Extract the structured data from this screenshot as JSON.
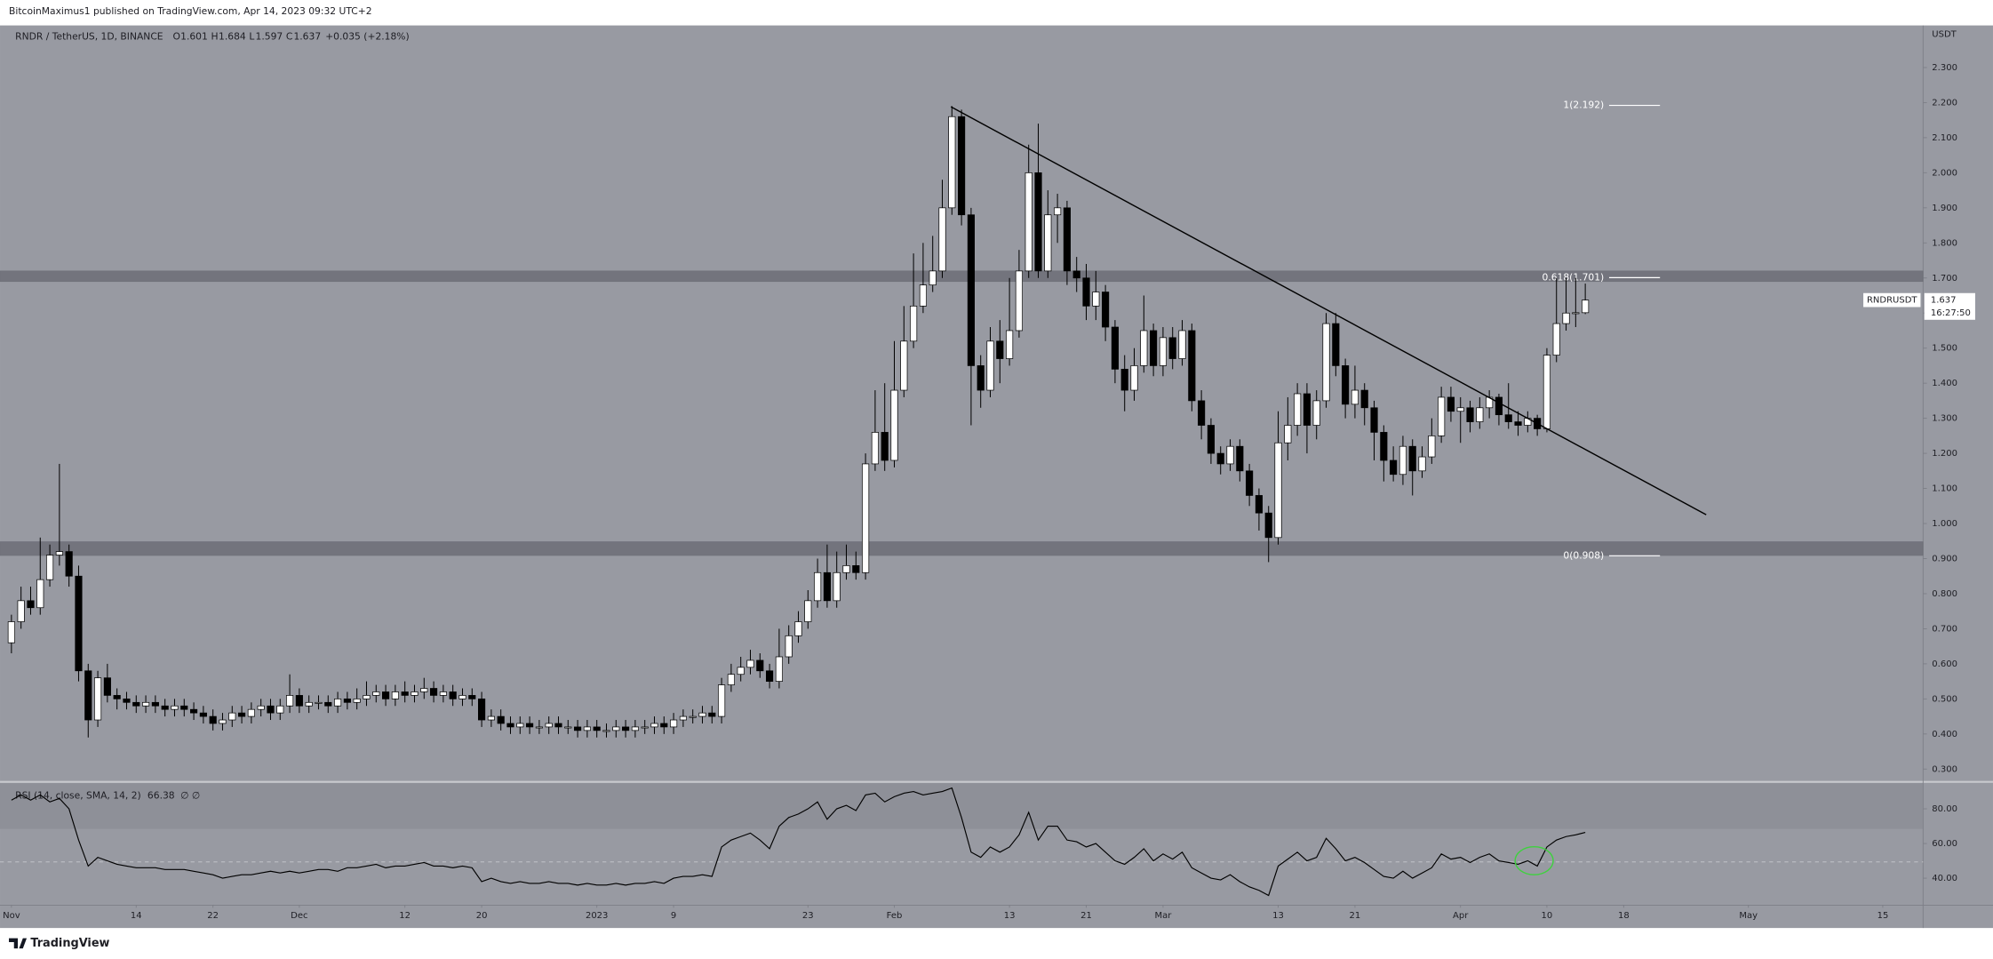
{
  "header": "BitcoinMaximus1 published on TradingView.com, Apr 14, 2023 09:32 UTC+2",
  "footer": "TradingView",
  "chart_data": [
    {
      "type": "candlestick",
      "title": "RNDR / TetherUS, 1D, BINANCE",
      "ohlc_letters": [
        "O",
        "H",
        "L",
        "C"
      ],
      "change": "+0.035 (+2.18%)",
      "currency": "USDT",
      "symbol": "RNDRUSDT",
      "countdown": "16:27:50",
      "up_color": "#ffffff",
      "down_color": "#000000",
      "xlim": [
        -1.19,
        199.2
      ],
      "xticks": [
        {
          "value": 0,
          "label": "Nov"
        },
        {
          "value": 13,
          "label": "14"
        },
        {
          "value": 21,
          "label": "22"
        },
        {
          "value": 30,
          "label": "Dec"
        },
        {
          "value": 41,
          "label": "12"
        },
        {
          "value": 49,
          "label": "20"
        },
        {
          "value": 61,
          "label": "2023"
        },
        {
          "value": 69,
          "label": "9"
        },
        {
          "value": 83,
          "label": "23"
        },
        {
          "value": 92,
          "label": "Feb"
        },
        {
          "value": 104,
          "label": "13"
        },
        {
          "value": 112,
          "label": "21"
        },
        {
          "value": 120,
          "label": "Mar"
        },
        {
          "value": 132,
          "label": "13"
        },
        {
          "value": 140,
          "label": "21"
        },
        {
          "value": 151,
          "label": "Apr"
        },
        {
          "value": 160,
          "label": "10"
        },
        {
          "value": 168,
          "label": "18"
        },
        {
          "value": 181,
          "label": "May"
        },
        {
          "value": 195,
          "label": "15"
        }
      ],
      "ylim": [
        0.267,
        2.42
      ],
      "yticks": [
        {
          "value": 0.3,
          "label": "0.300"
        },
        {
          "value": 0.4,
          "label": "0.400"
        },
        {
          "value": 0.5,
          "label": "0.500"
        },
        {
          "value": 0.6,
          "label": "0.600"
        },
        {
          "value": 0.7,
          "label": "0.700"
        },
        {
          "value": 0.8,
          "label": "0.800"
        },
        {
          "value": 0.9,
          "label": "0.900"
        },
        {
          "value": 1,
          "label": "1.000"
        },
        {
          "value": 1.1,
          "label": "1.100"
        },
        {
          "value": 1.2,
          "label": "1.200"
        },
        {
          "value": 1.3,
          "label": "1.300"
        },
        {
          "value": 1.4,
          "label": "1.400"
        },
        {
          "value": 1.5,
          "label": "1.500"
        },
        {
          "value": 1.6,
          "label": "1.600"
        },
        {
          "value": 1.7,
          "label": "1.700"
        },
        {
          "value": 1.8,
          "label": "1.800"
        },
        {
          "value": 1.9,
          "label": "1.900"
        },
        {
          "value": 2,
          "label": "2.000"
        },
        {
          "value": 2.1,
          "label": "2.100"
        },
        {
          "value": 2.2,
          "label": "2.200"
        },
        {
          "value": 2.3,
          "label": "2.300"
        }
      ],
      "zones": [
        [
          1.69,
          1.72
        ],
        [
          0.909,
          0.948
        ]
      ],
      "levels": [
        {
          "value": 2.192,
          "label": "1(2.192)"
        },
        {
          "value": 1.701,
          "label": "0.618(1.701)"
        },
        {
          "value": 0.908,
          "label": "0(0.908)"
        }
      ],
      "trendline": {
        "x": [
          97.9,
          176.6
        ],
        "y": [
          2.188,
          1.025
        ]
      },
      "open": [
        0.66,
        0.72,
        0.78,
        0.76,
        0.84,
        0.91,
        0.92,
        0.85,
        0.58,
        0.44,
        0.56,
        0.51,
        0.5,
        0.49,
        0.48,
        0.49,
        0.48,
        0.47,
        0.48,
        0.47,
        0.46,
        0.45,
        0.43,
        0.44,
        0.46,
        0.45,
        0.47,
        0.48,
        0.46,
        0.48,
        0.51,
        0.48,
        0.49,
        0.49,
        0.48,
        0.5,
        0.49,
        0.5,
        0.51,
        0.52,
        0.5,
        0.52,
        0.51,
        0.52,
        0.53,
        0.51,
        0.52,
        0.5,
        0.51,
        0.5,
        0.44,
        0.45,
        0.43,
        0.42,
        0.43,
        0.42,
        0.42,
        0.43,
        0.42,
        0.42,
        0.41,
        0.42,
        0.41,
        0.41,
        0.42,
        0.41,
        0.42,
        0.42,
        0.43,
        0.42,
        0.44,
        0.45,
        0.45,
        0.46,
        0.45,
        0.54,
        0.57,
        0.59,
        0.61,
        0.58,
        0.55,
        0.62,
        0.68,
        0.72,
        0.78,
        0.86,
        0.78,
        0.86,
        0.88,
        0.86,
        1.17,
        1.26,
        1.18,
        1.38,
        1.52,
        1.62,
        1.68,
        1.72,
        1.9,
        2.16,
        1.88,
        1.45,
        1.38,
        1.52,
        1.47,
        1.55,
        1.72,
        2.0,
        1.72,
        1.88,
        1.9,
        1.72,
        1.7,
        1.62,
        1.66,
        1.56,
        1.44,
        1.38,
        1.45,
        1.55,
        1.45,
        1.53,
        1.47,
        1.55,
        1.35,
        1.28,
        1.2,
        1.17,
        1.22,
        1.15,
        1.08,
        1.03,
        0.96,
        1.23,
        1.28,
        1.37,
        1.28,
        1.35,
        1.57,
        1.45,
        1.34,
        1.38,
        1.33,
        1.26,
        1.18,
        1.14,
        1.22,
        1.15,
        1.19,
        1.25,
        1.36,
        1.32,
        1.33,
        1.29,
        1.33,
        1.36,
        1.31,
        1.29,
        1.28,
        1.3,
        1.27,
        1.48,
        1.57,
        1.6,
        1.601
      ],
      "high": [
        0.74,
        0.82,
        0.82,
        0.96,
        0.94,
        1.17,
        0.94,
        0.88,
        0.6,
        0.58,
        0.6,
        0.53,
        0.52,
        0.51,
        0.51,
        0.51,
        0.5,
        0.5,
        0.5,
        0.49,
        0.48,
        0.47,
        0.46,
        0.48,
        0.48,
        0.49,
        0.5,
        0.5,
        0.5,
        0.57,
        0.53,
        0.51,
        0.51,
        0.51,
        0.52,
        0.52,
        0.53,
        0.55,
        0.54,
        0.54,
        0.54,
        0.55,
        0.54,
        0.56,
        0.55,
        0.54,
        0.54,
        0.53,
        0.53,
        0.52,
        0.47,
        0.47,
        0.45,
        0.45,
        0.45,
        0.44,
        0.45,
        0.45,
        0.44,
        0.44,
        0.44,
        0.44,
        0.43,
        0.44,
        0.44,
        0.44,
        0.44,
        0.45,
        0.45,
        0.46,
        0.47,
        0.47,
        0.48,
        0.48,
        0.56,
        0.6,
        0.62,
        0.64,
        0.63,
        0.6,
        0.7,
        0.71,
        0.75,
        0.81,
        0.9,
        0.94,
        0.92,
        0.94,
        0.92,
        1.2,
        1.38,
        1.4,
        1.52,
        1.62,
        1.77,
        1.8,
        1.82,
        1.98,
        2.19,
        2.18,
        1.9,
        1.48,
        1.56,
        1.58,
        1.7,
        1.78,
        2.08,
        2.14,
        1.95,
        1.94,
        1.92,
        1.76,
        1.74,
        1.72,
        1.68,
        1.58,
        1.48,
        1.5,
        1.65,
        1.57,
        1.56,
        1.56,
        1.58,
        1.57,
        1.38,
        1.3,
        1.22,
        1.24,
        1.24,
        1.17,
        1.1,
        1.05,
        1.32,
        1.36,
        1.4,
        1.4,
        1.38,
        1.6,
        1.6,
        1.47,
        1.45,
        1.4,
        1.35,
        1.28,
        1.22,
        1.25,
        1.24,
        1.22,
        1.3,
        1.39,
        1.39,
        1.36,
        1.35,
        1.36,
        1.38,
        1.37,
        1.4,
        1.32,
        1.32,
        1.31,
        1.5,
        1.7,
        1.7,
        1.7,
        1.684
      ],
      "low": [
        0.63,
        0.7,
        0.74,
        0.74,
        0.82,
        0.88,
        0.82,
        0.55,
        0.39,
        0.42,
        0.49,
        0.47,
        0.47,
        0.46,
        0.46,
        0.46,
        0.45,
        0.45,
        0.45,
        0.44,
        0.43,
        0.41,
        0.41,
        0.42,
        0.43,
        0.43,
        0.45,
        0.44,
        0.44,
        0.46,
        0.46,
        0.46,
        0.47,
        0.46,
        0.46,
        0.47,
        0.47,
        0.48,
        0.49,
        0.48,
        0.48,
        0.49,
        0.49,
        0.5,
        0.49,
        0.49,
        0.48,
        0.48,
        0.48,
        0.42,
        0.42,
        0.41,
        0.4,
        0.4,
        0.4,
        0.4,
        0.4,
        0.4,
        0.4,
        0.39,
        0.39,
        0.39,
        0.39,
        0.39,
        0.39,
        0.39,
        0.4,
        0.4,
        0.4,
        0.4,
        0.42,
        0.43,
        0.43,
        0.43,
        0.43,
        0.52,
        0.55,
        0.57,
        0.56,
        0.53,
        0.53,
        0.6,
        0.66,
        0.7,
        0.76,
        0.76,
        0.76,
        0.84,
        0.84,
        0.84,
        1.15,
        1.15,
        1.16,
        1.36,
        1.5,
        1.6,
        1.66,
        1.7,
        1.88,
        1.85,
        1.28,
        1.33,
        1.36,
        1.4,
        1.45,
        1.53,
        1.7,
        1.7,
        1.7,
        1.8,
        1.68,
        1.66,
        1.58,
        1.58,
        1.52,
        1.4,
        1.32,
        1.35,
        1.43,
        1.42,
        1.42,
        1.44,
        1.45,
        1.32,
        1.24,
        1.17,
        1.14,
        1.15,
        1.12,
        1.05,
        0.98,
        0.89,
        0.94,
        1.18,
        1.25,
        1.2,
        1.24,
        1.33,
        1.42,
        1.3,
        1.3,
        1.28,
        1.18,
        1.12,
        1.12,
        1.11,
        1.08,
        1.13,
        1.17,
        1.23,
        1.29,
        1.23,
        1.26,
        1.27,
        1.3,
        1.28,
        1.27,
        1.25,
        1.26,
        1.25,
        1.26,
        1.46,
        1.55,
        1.56,
        1.597
      ],
      "close": [
        0.72,
        0.78,
        0.76,
        0.84,
        0.91,
        0.92,
        0.85,
        0.58,
        0.44,
        0.56,
        0.51,
        0.5,
        0.49,
        0.48,
        0.49,
        0.48,
        0.47,
        0.48,
        0.47,
        0.46,
        0.45,
        0.43,
        0.44,
        0.46,
        0.45,
        0.47,
        0.48,
        0.46,
        0.48,
        0.51,
        0.48,
        0.49,
        0.49,
        0.48,
        0.5,
        0.49,
        0.5,
        0.51,
        0.52,
        0.5,
        0.52,
        0.51,
        0.52,
        0.53,
        0.51,
        0.52,
        0.5,
        0.51,
        0.5,
        0.44,
        0.45,
        0.43,
        0.42,
        0.43,
        0.42,
        0.42,
        0.43,
        0.42,
        0.42,
        0.41,
        0.42,
        0.41,
        0.41,
        0.42,
        0.41,
        0.42,
        0.42,
        0.43,
        0.42,
        0.44,
        0.45,
        0.45,
        0.46,
        0.45,
        0.54,
        0.57,
        0.59,
        0.61,
        0.58,
        0.55,
        0.62,
        0.68,
        0.72,
        0.78,
        0.86,
        0.78,
        0.86,
        0.88,
        0.86,
        1.17,
        1.26,
        1.18,
        1.38,
        1.52,
        1.62,
        1.68,
        1.72,
        1.9,
        2.16,
        1.88,
        1.45,
        1.38,
        1.52,
        1.47,
        1.55,
        1.72,
        2.0,
        1.72,
        1.88,
        1.9,
        1.72,
        1.7,
        1.62,
        1.66,
        1.56,
        1.44,
        1.38,
        1.45,
        1.55,
        1.45,
        1.53,
        1.47,
        1.55,
        1.35,
        1.28,
        1.2,
        1.17,
        1.22,
        1.15,
        1.08,
        1.03,
        0.96,
        1.23,
        1.28,
        1.37,
        1.28,
        1.35,
        1.57,
        1.45,
        1.34,
        1.38,
        1.33,
        1.26,
        1.18,
        1.14,
        1.22,
        1.15,
        1.19,
        1.25,
        1.36,
        1.32,
        1.33,
        1.29,
        1.33,
        1.36,
        1.31,
        1.29,
        1.28,
        1.3,
        1.27,
        1.48,
        1.57,
        1.6,
        1.601,
        1.637
      ]
    },
    {
      "type": "line",
      "title": "RSI (14, close, SMA, 14, 2)",
      "na_label": "∅ ∅",
      "color": "#000000",
      "ylim": [
        24.4,
        94.8
      ],
      "yticks": [
        {
          "value": 80,
          "label": "80.00"
        },
        {
          "value": 60,
          "label": "60.00"
        },
        {
          "value": 40,
          "label": "40.00"
        }
      ],
      "values": [
        85,
        88,
        85,
        88,
        84,
        86,
        80,
        62,
        47,
        52,
        50,
        48,
        47,
        46,
        46,
        46,
        45,
        45,
        45,
        44,
        43,
        42,
        40,
        41,
        42,
        42,
        43,
        44,
        43,
        44,
        43,
        44,
        45,
        45,
        44,
        46,
        46,
        47,
        48,
        46,
        47,
        47,
        48,
        49,
        47,
        47,
        46,
        47,
        46,
        38,
        40,
        38,
        37,
        38,
        37,
        37,
        38,
        37,
        37,
        36,
        37,
        36,
        36,
        37,
        36,
        37,
        37,
        38,
        37,
        40,
        41,
        41,
        42,
        41,
        58,
        62,
        64,
        66,
        62,
        57,
        70,
        75,
        77,
        80,
        84,
        74,
        80,
        82,
        79,
        88,
        89,
        84,
        87,
        89,
        90,
        88,
        89,
        90,
        92,
        75,
        55,
        52,
        58,
        55,
        58,
        65,
        78,
        62,
        70,
        70,
        62,
        61,
        58,
        60,
        55,
        50,
        48,
        52,
        57,
        50,
        54,
        51,
        55,
        46,
        43,
        40,
        39,
        42,
        38,
        35,
        33,
        30,
        47,
        51,
        55,
        50,
        52,
        63,
        57,
        50,
        52,
        49,
        45,
        41,
        40,
        44,
        40,
        43,
        46,
        54,
        51,
        52,
        49,
        52,
        54,
        50,
        49,
        48,
        50,
        47,
        58,
        62,
        64,
        65,
        66.38
      ]
    }
  ]
}
